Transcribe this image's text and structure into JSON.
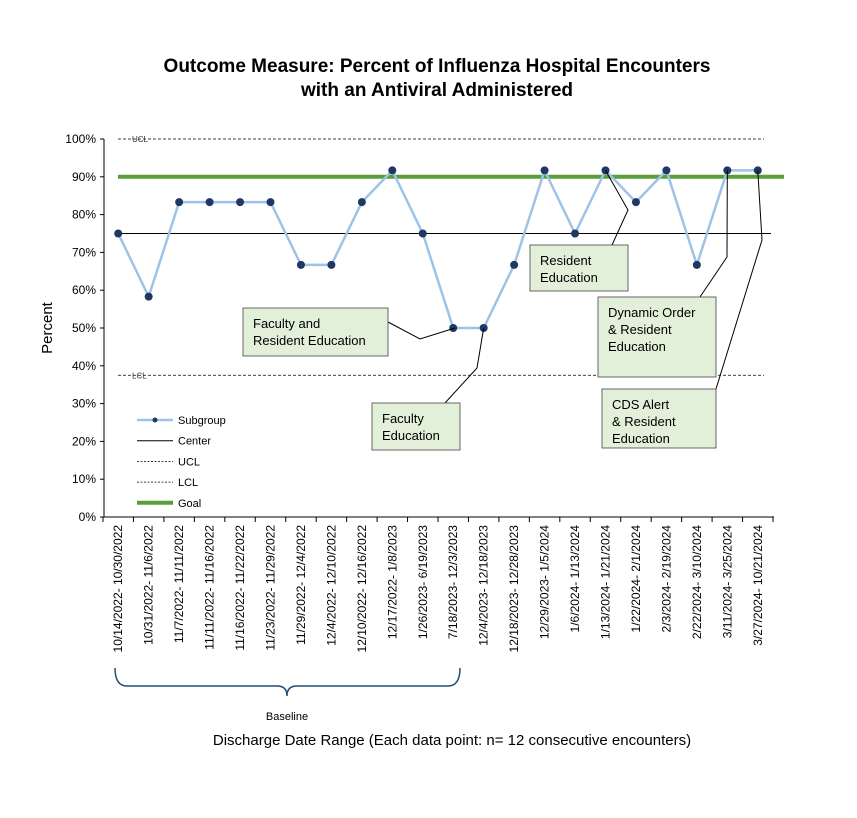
{
  "chart_data": {
    "type": "line",
    "title": [
      "Outcome Measure: Percent of Influenza Hospital Encounters",
      "with an Antiviral Administered"
    ],
    "ylabel": "Percent",
    "xlabel": "Discharge Date Range (Each data point: n= 12 consecutive encounters)",
    "ylim": [
      0,
      100
    ],
    "y_ticks": [
      "0%",
      "10%",
      "20%",
      "30%",
      "40%",
      "50%",
      "60%",
      "70%",
      "80%",
      "90%",
      "100%"
    ],
    "grid": false,
    "legend_position": "bottom-left",
    "categories": [
      "10/14/2022- 10/30/2022",
      "10/31/2022- 11/6/2022",
      "11/7/2022- 11/11/2022",
      "11/11/2022- 11/16/2022",
      "11/16/2022- 11/22/2022",
      "11/23/2022- 11/29/2022",
      "11/29/2022- 12/4/2022",
      "12/4/2022- 12/10/2022",
      "12/10/2022- 12/16/2022",
      "12/17/2022- 1/8/2023",
      "1/26/2023- 6/19/2023",
      "7/18/2023- 12/3/2023",
      "12/4/2023- 12/18/2023",
      "12/18/2023- 12/28/2023",
      "12/29/2023- 1/5/2024",
      "1/6/2024- 1/13/2024",
      "1/13/2024- 1/21/2024",
      "1/22/2024- 2/1/2024",
      "2/3/2024- 2/19/2024",
      "2/22/2024- 3/10/2024",
      "3/11/2024- 3/25/2024",
      "3/27/2024- 10/21/2024"
    ],
    "series": [
      {
        "name": "Subgroup",
        "values": [
          75,
          58.3,
          83.3,
          83.3,
          83.3,
          83.3,
          66.7,
          66.7,
          83.3,
          91.7,
          75,
          50,
          50,
          66.7,
          91.7,
          75,
          91.7,
          83.3,
          91.7,
          66.7,
          91.7,
          91.7
        ],
        "color": "#9dc3e6",
        "marker_color": "#1f3864"
      },
      {
        "name": "Center",
        "value": 75,
        "color": "#000000"
      },
      {
        "name": "UCL",
        "value": 100,
        "color": "#000000",
        "label": "UCL"
      },
      {
        "name": "LCL",
        "value": 37.5,
        "color": "#000000",
        "label": "LCL"
      },
      {
        "name": "Goal",
        "value": 90,
        "color": "#5a9e3a"
      }
    ],
    "annotations": [
      {
        "lines": [
          "Faculty and",
          "Resident Education"
        ]
      },
      {
        "lines": [
          "Faculty",
          "Education"
        ]
      },
      {
        "lines": [
          "Resident",
          "Education"
        ]
      },
      {
        "lines": [
          "Dynamic Order",
          "& Resident",
          "Education"
        ]
      },
      {
        "lines": [
          "CDS Alert",
          "& Resident",
          "Education"
        ]
      }
    ],
    "baseline_label": "Baseline"
  }
}
